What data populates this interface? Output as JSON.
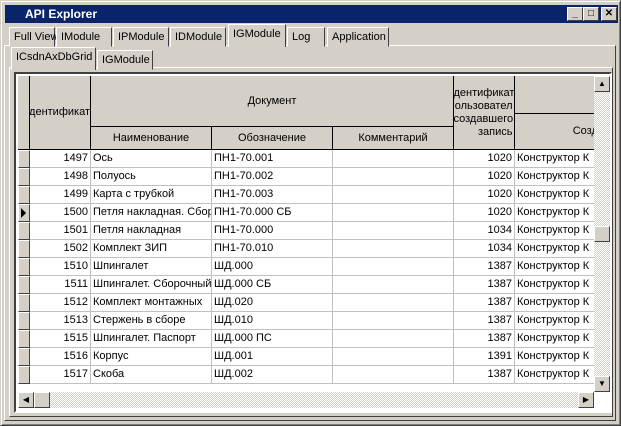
{
  "window": {
    "title": "API Explorer",
    "minimize": "_",
    "maximize": "□",
    "close": "✕"
  },
  "tabs": [
    "Full View",
    "IModule",
    "IPModule",
    "IDModule",
    "IGModule",
    "Log",
    "Application"
  ],
  "active_tab": "IGModule",
  "subtabs": [
    "ICsdnAxDbGrid",
    "IGModule"
  ],
  "active_subtab": "ICsdnAxDbGrid",
  "grid": {
    "headers": {
      "id": "дентификат",
      "document": "Документ",
      "name": "Наименование",
      "designation": "Обозначение",
      "comment": "Комментарий",
      "user_id": [
        "дентификат",
        "ользовател",
        "создавшего",
        "запись"
      ],
      "creator": "Созда"
    },
    "current_row": 3,
    "rows": [
      {
        "id": "1497",
        "name": "Ось",
        "designation": "ПН1-70.001",
        "comment": "",
        "user_id": "1020",
        "creator": "Конструктор К"
      },
      {
        "id": "1498",
        "name": "Полуось",
        "designation": "ПН1-70.002",
        "comment": "",
        "user_id": "1020",
        "creator": "Конструктор К"
      },
      {
        "id": "1499",
        "name": "Карта с трубкой",
        "designation": "ПН1-70.003",
        "comment": "",
        "user_id": "1020",
        "creator": "Конструктор К"
      },
      {
        "id": "1500",
        "name": "Петля накладная. Сбор",
        "designation": "ПН1-70.000 СБ",
        "comment": "",
        "user_id": "1020",
        "creator": "Конструктор К"
      },
      {
        "id": "1501",
        "name": "Петля накладная",
        "designation": "ПН1-70.000",
        "comment": "",
        "user_id": "1034",
        "creator": "Конструктор К"
      },
      {
        "id": "1502",
        "name": "Комплект ЗИП",
        "designation": "ПН1-70.010",
        "comment": "",
        "user_id": "1034",
        "creator": "Конструктор К"
      },
      {
        "id": "1510",
        "name": "Шпингалет",
        "designation": "ШД.000",
        "comment": "",
        "user_id": "1387",
        "creator": "Конструктор К"
      },
      {
        "id": "1511",
        "name": "Шпингалет. Сборочный",
        "designation": "ШД.000 СБ",
        "comment": "",
        "user_id": "1387",
        "creator": "Конструктор К"
      },
      {
        "id": "1512",
        "name": "Комплект монтажных",
        "designation": "ШД.020",
        "comment": "",
        "user_id": "1387",
        "creator": "Конструктор К"
      },
      {
        "id": "1513",
        "name": "Стержень в сборе",
        "designation": "ШД.010",
        "comment": "",
        "user_id": "1387",
        "creator": "Конструктор К"
      },
      {
        "id": "1515",
        "name": "Шпингалет. Паспорт",
        "designation": "ШД.000 ПС",
        "comment": "",
        "user_id": "1387",
        "creator": "Конструктор К"
      },
      {
        "id": "1516",
        "name": "Корпус",
        "designation": "ШД.001",
        "comment": "",
        "user_id": "1391",
        "creator": "Конструктор К"
      },
      {
        "id": "1517",
        "name": "Скоба",
        "designation": "ШД.002",
        "comment": "",
        "user_id": "1387",
        "creator": "Конструктор К"
      }
    ]
  }
}
